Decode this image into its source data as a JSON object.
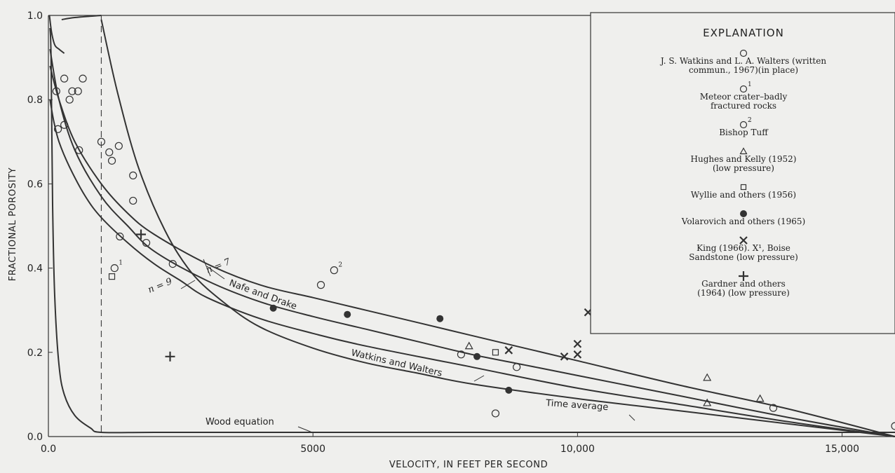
{
  "chart_data": {
    "type": "scatter",
    "xlabel": "VELOCITY, IN FEET PER SECOND",
    "ylabel": "FRACTIONAL POROSITY",
    "xlim": [
      0,
      16000
    ],
    "ylim": [
      0,
      1.0
    ],
    "x_ticks": [
      {
        "value": 0,
        "label": "0.0"
      },
      {
        "value": 5000,
        "label": "5000"
      },
      {
        "value": 10000,
        "label": "10,000"
      },
      {
        "value": 15000,
        "label": "15,000"
      }
    ],
    "y_ticks": [
      {
        "value": 0,
        "label": "0.0"
      },
      {
        "value": 0.2,
        "label": "0.2"
      },
      {
        "value": 0.4,
        "label": "0.4"
      },
      {
        "value": 0.6,
        "label": "0.6"
      },
      {
        "value": 0.8,
        "label": "0.8"
      },
      {
        "value": 1.0,
        "label": "1.0"
      }
    ],
    "reference_line_x": 1000,
    "legend": {
      "title": "EXPLANATION",
      "entries": [
        {
          "symbol": "circle",
          "lines": [
            "J. S. Watkins and L. A. Walters (written",
            "commun., 1967)(in place)"
          ]
        },
        {
          "symbol": "circle",
          "sup": "1",
          "lines": [
            "Meteor crater–badly",
            "fractured rocks"
          ]
        },
        {
          "symbol": "circle",
          "sup": "2",
          "lines": [
            "Bishop Tuff"
          ]
        },
        {
          "symbol": "triangle",
          "lines": [
            "Hughes and Kelly (1952)",
            "(low pressure)"
          ]
        },
        {
          "symbol": "square",
          "lines": [
            "Wyllie and others (1956)"
          ]
        },
        {
          "symbol": "filled-circle",
          "lines": [
            "Volarovich and others (1965)"
          ]
        },
        {
          "symbol": "x",
          "lines": [
            "King (1966). X¹, Boise",
            "Sandstone (low pressure)"
          ]
        },
        {
          "symbol": "plus",
          "lines": [
            "Gardner and others",
            "(1964) (low pressure)"
          ]
        }
      ]
    },
    "curve_labels": {
      "wood": "Wood equation",
      "time_average": "Time average",
      "watkins_walters": "Watkins and Walters",
      "nafe_drake": "Nafe and Drake",
      "n7": "n = 7",
      "n9": "n = 9"
    },
    "curves": [
      {
        "name": "Wood equation",
        "x": [
          30,
          50,
          80,
          120,
          200,
          300,
          500,
          800,
          1000,
          2000,
          4000,
          8000,
          12000,
          16000
        ],
        "y": [
          0.97,
          0.9,
          0.55,
          0.33,
          0.17,
          0.1,
          0.05,
          0.02,
          0.01,
          0.01,
          0.01,
          0.01,
          0.01,
          0.01
        ]
      },
      {
        "name": "Time average",
        "x": [
          1000,
          1300,
          1700,
          2200,
          2700,
          3300,
          4000,
          5000,
          6000,
          7000,
          8000,
          10000,
          12000,
          14000,
          16000
        ],
        "y": [
          0.99,
          0.82,
          0.64,
          0.49,
          0.39,
          0.32,
          0.26,
          0.21,
          0.175,
          0.15,
          0.125,
          0.09,
          0.06,
          0.03,
          0
        ]
      },
      {
        "name": "Watkins and Walters",
        "x": [
          30,
          100,
          200,
          400,
          700,
          1000,
          1500,
          2000,
          2500,
          3000,
          4000,
          5000,
          6000,
          8000,
          10000,
          12000,
          14000,
          16000
        ],
        "y": [
          0.8,
          0.75,
          0.7,
          0.64,
          0.57,
          0.52,
          0.46,
          0.41,
          0.37,
          0.33,
          0.28,
          0.245,
          0.215,
          0.165,
          0.115,
          0.075,
          0.035,
          0
        ]
      },
      {
        "name": "Nafe and Drake n=7",
        "x": [
          30,
          200,
          500,
          1000,
          1500,
          2000,
          3000,
          4000,
          5000,
          6000,
          7000,
          8000,
          9000,
          10000,
          12000,
          14000,
          16000
        ],
        "y": [
          0.88,
          0.8,
          0.7,
          0.6,
          0.53,
          0.48,
          0.41,
          0.36,
          0.33,
          0.3,
          0.27,
          0.24,
          0.21,
          0.18,
          0.12,
          0.065,
          0
        ]
      },
      {
        "name": "Nafe and Drake n=9",
        "x": [
          30,
          200,
          500,
          1000,
          1500,
          2000,
          3000,
          4000,
          5000,
          6000,
          7000,
          8000,
          9000,
          10000,
          12000,
          14000,
          16000
        ],
        "y": [
          0.92,
          0.8,
          0.68,
          0.57,
          0.5,
          0.44,
          0.37,
          0.32,
          0.285,
          0.255,
          0.225,
          0.195,
          0.17,
          0.145,
          0.095,
          0.045,
          0
        ]
      },
      {
        "name": "Upper envelope",
        "x": [
          250,
          500,
          1000
        ],
        "y": [
          0.99,
          0.995,
          1.0
        ]
      },
      {
        "name": "Steep left envelope",
        "x": [
          20,
          60,
          120,
          200,
          300
        ],
        "y": [
          1.0,
          0.96,
          0.93,
          0.92,
          0.91
        ]
      }
    ],
    "points": [
      {
        "symbol": "circle",
        "x": 150,
        "y": 0.82
      },
      {
        "symbol": "circle",
        "x": 300,
        "y": 0.85
      },
      {
        "symbol": "circle",
        "x": 450,
        "y": 0.82
      },
      {
        "symbol": "circle",
        "x": 560,
        "y": 0.82
      },
      {
        "symbol": "circle",
        "x": 650,
        "y": 0.85
      },
      {
        "symbol": "circle",
        "x": 400,
        "y": 0.8
      },
      {
        "symbol": "circle",
        "x": 180,
        "y": 0.73
      },
      {
        "symbol": "circle",
        "x": 300,
        "y": 0.74
      },
      {
        "symbol": "circle",
        "x": 580,
        "y": 0.68
      },
      {
        "symbol": "circle",
        "x": 1000,
        "y": 0.7
      },
      {
        "symbol": "circle",
        "x": 1330,
        "y": 0.69
      },
      {
        "symbol": "circle",
        "x": 1150,
        "y": 0.675
      },
      {
        "symbol": "circle",
        "x": 1200,
        "y": 0.655
      },
      {
        "symbol": "circle",
        "x": 1600,
        "y": 0.62
      },
      {
        "symbol": "circle",
        "x": 1600,
        "y": 0.56
      },
      {
        "symbol": "circle",
        "x": 1350,
        "y": 0.475
      },
      {
        "symbol": "circle",
        "x": 1850,
        "y": 0.46
      },
      {
        "symbol": "circle",
        "x": 2350,
        "y": 0.41
      },
      {
        "symbol": "circle",
        "x": 5150,
        "y": 0.36
      },
      {
        "symbol": "circle",
        "x": 7800,
        "y": 0.195
      },
      {
        "symbol": "circle",
        "x": 8850,
        "y": 0.165
      },
      {
        "symbol": "circle",
        "x": 8450,
        "y": 0.055
      },
      {
        "symbol": "circle",
        "x": 13700,
        "y": 0.068
      },
      {
        "symbol": "circle",
        "x": 16000,
        "y": 0.025
      },
      {
        "symbol": "circle",
        "sup": "1",
        "x": 1250,
        "y": 0.4
      },
      {
        "symbol": "circle",
        "sup": "2",
        "x": 5400,
        "y": 0.395
      },
      {
        "symbol": "triangle",
        "x": 7950,
        "y": 0.215
      },
      {
        "symbol": "triangle",
        "x": 12450,
        "y": 0.14
      },
      {
        "symbol": "triangle",
        "x": 12450,
        "y": 0.08
      },
      {
        "symbol": "triangle",
        "x": 13450,
        "y": 0.09
      },
      {
        "symbol": "square",
        "x": 1200,
        "y": 0.38
      },
      {
        "symbol": "square",
        "x": 8450,
        "y": 0.2
      },
      {
        "symbol": "filled-circle",
        "x": 4250,
        "y": 0.305
      },
      {
        "symbol": "filled-circle",
        "x": 5650,
        "y": 0.29
      },
      {
        "symbol": "filled-circle",
        "x": 7400,
        "y": 0.28
      },
      {
        "symbol": "filled-circle",
        "x": 8100,
        "y": 0.19
      },
      {
        "symbol": "filled-circle",
        "x": 8700,
        "y": 0.11
      },
      {
        "symbol": "x",
        "x": 8700,
        "y": 0.205
      },
      {
        "symbol": "x",
        "x": 9750,
        "y": 0.19
      },
      {
        "symbol": "x",
        "x": 10000,
        "y": 0.22
      },
      {
        "symbol": "x",
        "x": 10000,
        "y": 0.195
      },
      {
        "symbol": "x",
        "sup": "1",
        "x": 10200,
        "y": 0.295
      },
      {
        "symbol": "plus",
        "x": 1750,
        "y": 0.48
      },
      {
        "symbol": "plus",
        "x": 2300,
        "y": 0.19
      }
    ]
  }
}
